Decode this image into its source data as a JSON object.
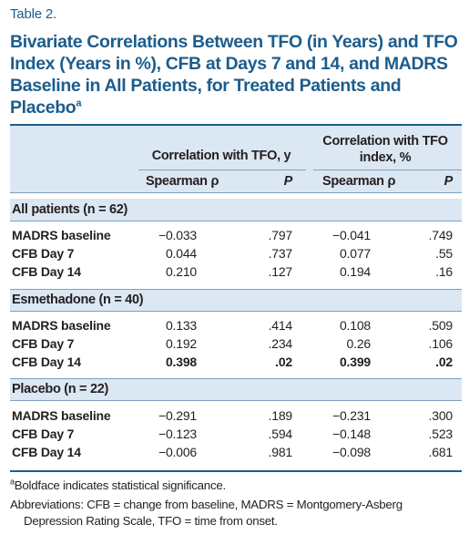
{
  "table_label": "Table 2.",
  "title_main": "Bivariate Correlations Between TFO (in Years) and TFO Index (Years in %), CFB at Days 7 and 14, and MADRS Baseline in All Patients, for Treated Patients and Placebo",
  "title_sup": "a",
  "headers": {
    "group1": "Correlation with TFO, y",
    "group2_line1": "Correlation with TFO",
    "group2_line2": "index, %",
    "spearman1": "Spearman ρ",
    "p1": "P",
    "spearman2": "Spearman ρ",
    "p2": "P"
  },
  "sections": [
    {
      "label": "All patients (n = 62)",
      "rows": [
        {
          "label": "MADRS baseline",
          "s1": "−0.033",
          "p1": ".797",
          "s2": "−0.041",
          "p2": ".749"
        },
        {
          "label": "CFB Day 7",
          "s1": "0.044",
          "p1": ".737",
          "s2": "0.077",
          "p2": ".55"
        },
        {
          "label": "CFB Day 14",
          "s1": "0.210",
          "p1": ".127",
          "s2": "0.194",
          "p2": ".16"
        }
      ]
    },
    {
      "label": "Esmethadone (n = 40)",
      "rows": [
        {
          "label": "MADRS baseline",
          "s1": "0.133",
          "p1": ".414",
          "s2": "0.108",
          "p2": ".509"
        },
        {
          "label": "CFB Day 7",
          "s1": "0.192",
          "p1": ".234",
          "s2": "0.26",
          "p2": ".106"
        },
        {
          "label": "CFB Day 14",
          "s1": "0.398",
          "p1": ".02",
          "s2": "0.399",
          "p2": ".02",
          "bold": true
        }
      ]
    },
    {
      "label": "Placebo (n = 22)",
      "rows": [
        {
          "label": "MADRS baseline",
          "s1": "−0.291",
          "p1": ".189",
          "s2": "−0.231",
          "p2": ".300"
        },
        {
          "label": "CFB Day 7",
          "s1": "−0.123",
          "p1": ".594",
          "s2": "−0.148",
          "p2": ".523"
        },
        {
          "label": "CFB Day 14",
          "s1": "−0.006",
          "p1": ".981",
          "s2": "−0.098",
          "p2": ".681"
        }
      ]
    }
  ],
  "footnotes": {
    "a_marker": "a",
    "a_text": "Boldface indicates statistical significance.",
    "abbrev_line1": "Abbreviations: CFB = change from baseline, MADRS = Montgomery-Asberg",
    "abbrev_line2": "Depression Rating Scale, TFO = time from onset."
  },
  "colors": {
    "accent": "#1c5d8c",
    "band": "#dbe7f3"
  }
}
